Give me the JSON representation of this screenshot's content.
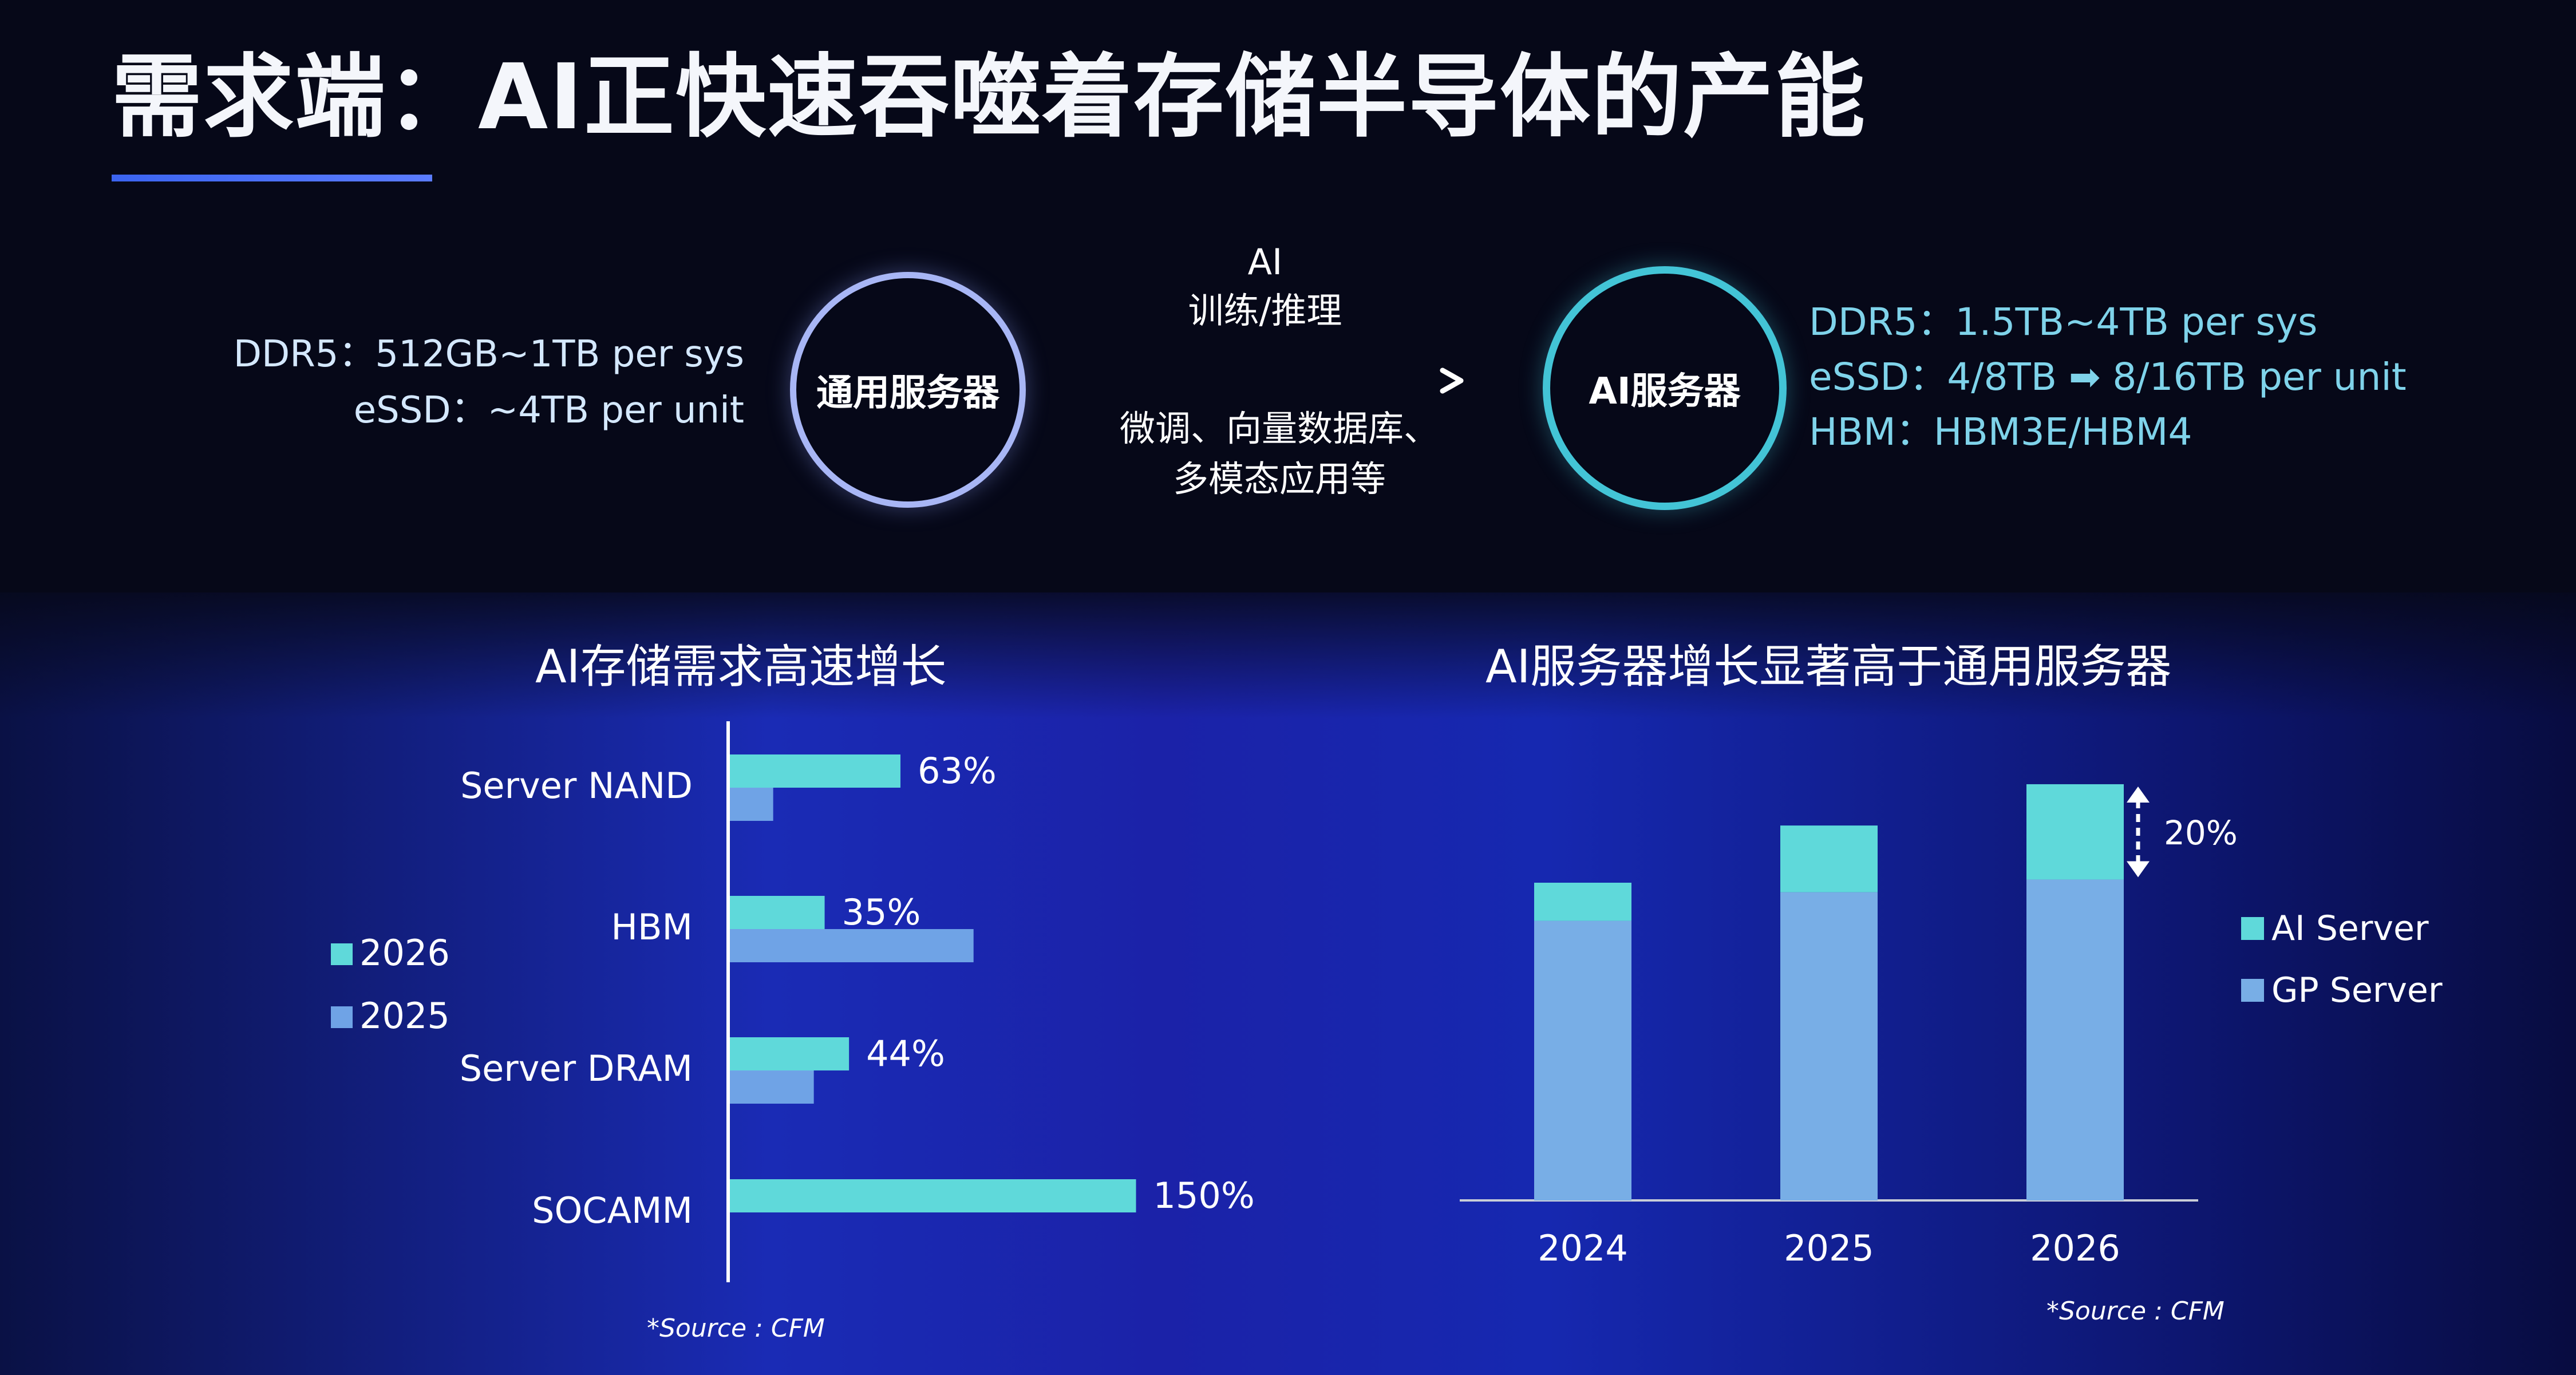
{
  "slide": {
    "title": "需求端：AI正快速吞噬着存储半导体的产能"
  },
  "gp_server": {
    "label": "通用服务器",
    "specs": [
      "DDR5：512GB~1TB per sys",
      "eSSD：~4TB per unit"
    ]
  },
  "flow": {
    "top_lines": [
      "AI",
      "训练/推理"
    ],
    "bottom_lines": [
      "微调、向量数据库、",
      "多模态应用等"
    ]
  },
  "ai_server": {
    "label": "AI服务器",
    "specs": [
      {
        "prefix": "DDR5：",
        "value": "1.5TB~4TB per sys"
      },
      {
        "prefix": "eSSD：",
        "before": "4/8TB",
        "arrow": "➡",
        "after": "8/16TB per unit"
      },
      {
        "prefix": "HBM：",
        "value": "HBM3E/HBM4"
      }
    ]
  },
  "colors": {
    "series_2026": "#5fd9da",
    "series_2025": "#6fa3e6",
    "ai_server": "#5fd9da",
    "gp_server": "#78aee6"
  },
  "chart_data": [
    {
      "type": "bar",
      "orientation": "horizontal",
      "title": "AI存储需求高速增长",
      "categories": [
        "Server NAND",
        "HBM",
        "Server DRAM",
        "SOCAMM"
      ],
      "series": [
        {
          "name": "2026",
          "values": [
            63,
            35,
            44,
            150
          ],
          "labels": [
            "63%",
            "35%",
            "44%",
            "150%"
          ]
        },
        {
          "name": "2025",
          "values": [
            16,
            90,
            31,
            0
          ]
        }
      ],
      "xlim": [
        0,
        160
      ],
      "legend_position": "left",
      "source": "*Source : CFM"
    },
    {
      "type": "bar",
      "stacked": true,
      "title": "AI服务器增长显著高于通用服务器",
      "categories": [
        "2024",
        "2025",
        "2026"
      ],
      "series": [
        {
          "name": "AI Server",
          "values": [
            12,
            21,
            30
          ]
        },
        {
          "name": "GP Server",
          "values": [
            88,
            97,
            101
          ]
        }
      ],
      "ylim": [
        0,
        140
      ],
      "annotation": "20%",
      "legend_position": "right",
      "source": "*Source : CFM"
    }
  ]
}
